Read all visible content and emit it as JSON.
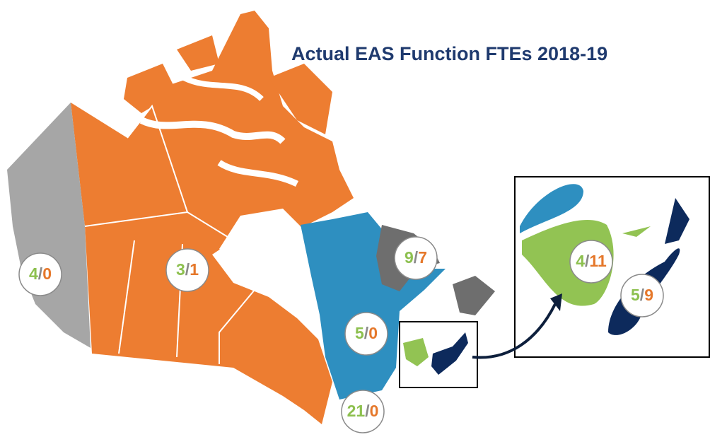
{
  "title": "Actual EAS Function FTEs 2018-19",
  "separator": "/",
  "badges": [
    {
      "first": 4,
      "second": 0
    },
    {
      "first": 3,
      "second": 1
    },
    {
      "first": 9,
      "second": 7
    },
    {
      "first": 5,
      "second": 0
    },
    {
      "first": 21,
      "second": 0
    },
    {
      "first": 4,
      "second": 11
    },
    {
      "first": 5,
      "second": 9
    }
  ]
}
